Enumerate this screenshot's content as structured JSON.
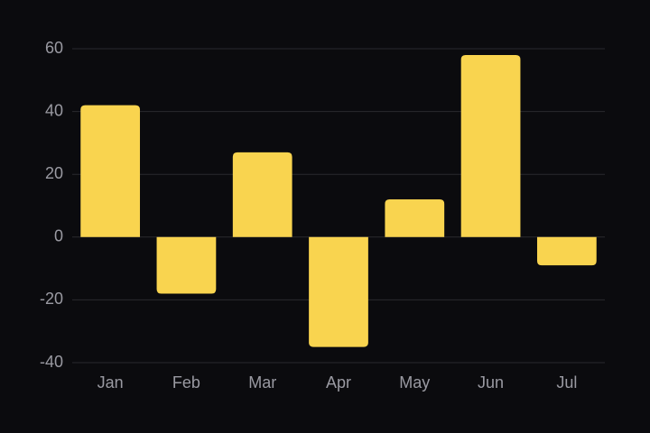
{
  "chart_data": {
    "type": "bar",
    "categories": [
      "Jan",
      "Feb",
      "Mar",
      "Apr",
      "May",
      "Jun",
      "Jul"
    ],
    "values": [
      42,
      -18,
      27,
      -35,
      12,
      58,
      -9
    ],
    "color": "#f9d44f",
    "ylim": [
      -40,
      60
    ],
    "yticks": [
      -40,
      -20,
      0,
      20,
      40,
      60
    ],
    "grid": true
  }
}
